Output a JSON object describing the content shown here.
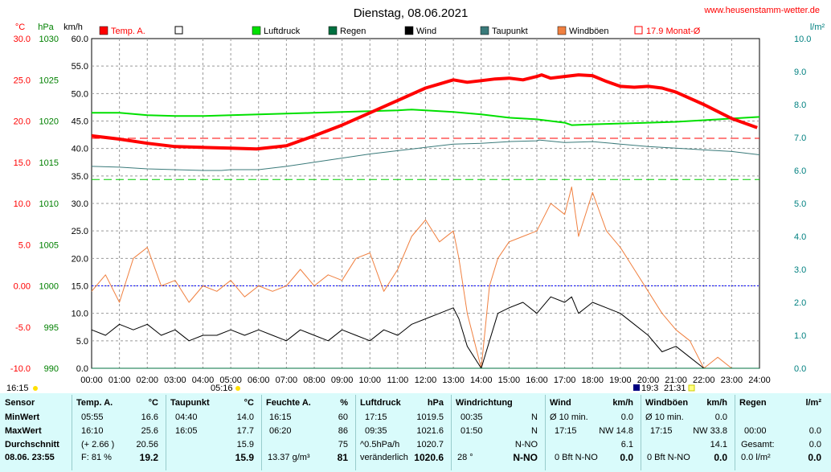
{
  "chart_data": {
    "type": "line",
    "title": "Dienstag, 08.06.2021",
    "source": "www.heusenstamm-wetter.de",
    "axes": {
      "temp": {
        "unit": "°C",
        "ticks": [
          "30.0",
          "25.0",
          "20.0",
          "15.0",
          "10.0",
          "5.0",
          "0.00",
          "-5.0",
          "-10.0"
        ],
        "color": "#ff0000",
        "range": [
          -10,
          30
        ]
      },
      "pressure": {
        "unit": "hPa",
        "ticks": [
          "1030",
          "1025",
          "1020",
          "1015",
          "1010",
          "1005",
          "1000",
          "995",
          "990"
        ],
        "color": "#008000",
        "range": [
          990,
          1030
        ]
      },
      "wind": {
        "unit": "km/h",
        "ticks": [
          "60.0",
          "55.0",
          "50.0",
          "45.0",
          "40.0",
          "35.0",
          "30.0",
          "25.0",
          "20.0",
          "15.0",
          "10.0",
          "5.0",
          "0.0"
        ],
        "color": "#000000",
        "range": [
          0,
          60
        ]
      },
      "rain": {
        "unit": "l/m²",
        "ticks": [
          "10.0",
          "9.0",
          "8.0",
          "7.0",
          "6.0",
          "5.0",
          "4.0",
          "3.0",
          "2.0",
          "1.0",
          "0.0"
        ],
        "color": "#008080",
        "range": [
          0,
          10
        ]
      }
    },
    "x_ticks": [
      "00:00",
      "01:00",
      "02:00",
      "03:00",
      "04:00",
      "05:00",
      "06:00",
      "07:00",
      "08:00",
      "09:00",
      "10:00",
      "11:00",
      "12:00",
      "13:00",
      "14:00",
      "15:00",
      "16:00",
      "17:00",
      "18:00",
      "19:00",
      "20:00",
      "21:00",
      "22:00",
      "23:00",
      "24:00"
    ],
    "legend": [
      {
        "name": "Temp. A.",
        "color": "#ff0000",
        "style": "filled"
      },
      {
        "name": "",
        "color": "#ffffff",
        "style": "empty"
      },
      {
        "name": "Luftdruck",
        "color": "#00e000",
        "style": "filled"
      },
      {
        "name": "Regen",
        "color": "#007040",
        "style": "filled"
      },
      {
        "name": "Wind",
        "color": "#000000",
        "style": "filled"
      },
      {
        "name": "Taupunkt",
        "color": "#3a7a7a",
        "style": "filled"
      },
      {
        "name": "Windböen",
        "color": "#f08040",
        "style": "filled"
      },
      {
        "name": "17.9 Monat-Ø",
        "color": "#ff0000",
        "style": "outline"
      }
    ],
    "month_avg_temp": 17.9,
    "series": [
      {
        "name": "Temp. A.",
        "axis": "temp",
        "color": "#ff0000",
        "x": [
          0,
          1,
          2,
          3,
          4,
          5,
          5.93,
          7,
          8,
          9,
          10,
          11,
          12,
          12.5,
          13,
          13.5,
          14,
          14.5,
          15,
          15.5,
          16,
          16.17,
          16.5,
          17,
          17.5,
          18,
          18.5,
          19,
          19.5,
          20,
          20.5,
          21,
          22,
          23,
          23.92
        ],
        "y": [
          18.2,
          17.8,
          17.3,
          16.9,
          16.8,
          16.7,
          16.6,
          17.0,
          18.2,
          19.5,
          21.0,
          22.5,
          24.0,
          24.5,
          25.0,
          24.7,
          24.9,
          25.1,
          25.2,
          25.0,
          25.4,
          25.6,
          25.2,
          25.4,
          25.6,
          25.5,
          24.8,
          24.2,
          24.1,
          24.2,
          24.0,
          23.5,
          22.0,
          20.3,
          19.2
        ]
      },
      {
        "name": "Luftdruck",
        "axis": "pressure",
        "color": "#00e000",
        "x": [
          0,
          1,
          2,
          3,
          4,
          5,
          6,
          7,
          8,
          9,
          10,
          11,
          11.5,
          12,
          13,
          14,
          15,
          16,
          17,
          17.25,
          18,
          19,
          20,
          21,
          22,
          23,
          24
        ],
        "y": [
          1021.0,
          1021.0,
          1020.7,
          1020.6,
          1020.6,
          1020.7,
          1020.8,
          1020.9,
          1021.0,
          1021.1,
          1021.2,
          1021.3,
          1021.4,
          1021.3,
          1021.1,
          1020.8,
          1020.4,
          1020.2,
          1019.8,
          1019.5,
          1019.6,
          1019.7,
          1019.8,
          1019.9,
          1020.1,
          1020.3,
          1020.5
        ]
      },
      {
        "name": "Taupunkt",
        "axis": "temp",
        "color": "#3a7a7a",
        "x": [
          0,
          1,
          2,
          3,
          4,
          4.67,
          5,
          6,
          7,
          8,
          9,
          10,
          11,
          12,
          13,
          14,
          15,
          16,
          16.08,
          17,
          18,
          19,
          20,
          21,
          22,
          23,
          24
        ],
        "y": [
          14.5,
          14.4,
          14.2,
          14.1,
          14.0,
          14.0,
          14.1,
          14.1,
          14.5,
          15.0,
          15.5,
          16.0,
          16.4,
          16.8,
          17.2,
          17.3,
          17.5,
          17.6,
          17.7,
          17.4,
          17.5,
          17.2,
          16.9,
          16.7,
          16.5,
          16.3,
          15.9
        ]
      },
      {
        "name": "Wind",
        "axis": "wind",
        "color": "#000000",
        "x": [
          0,
          0.5,
          1,
          1.5,
          2,
          2.5,
          3,
          3.5,
          4,
          4.5,
          5,
          5.5,
          6,
          6.5,
          7,
          7.5,
          8,
          8.5,
          9,
          9.5,
          10,
          10.5,
          11,
          11.5,
          12,
          12.5,
          13,
          13.2,
          13.5,
          14,
          14.3,
          14.6,
          15,
          15.5,
          16,
          16.5,
          17,
          17.25,
          17.5,
          18,
          18.5,
          19,
          19.5,
          20,
          20.5,
          21,
          21.5,
          22
        ],
        "y": [
          7,
          6,
          8,
          7,
          8,
          6,
          7,
          5,
          6,
          6,
          7,
          6,
          7,
          6,
          5,
          7,
          6,
          5,
          7,
          6,
          5,
          7,
          6,
          8,
          9,
          10,
          11,
          9,
          4,
          0,
          5,
          10,
          11,
          12,
          10,
          13,
          12,
          13,
          10,
          12,
          11,
          10,
          8,
          6,
          3,
          4,
          2,
          0
        ]
      },
      {
        "name": "Windböen",
        "axis": "wind",
        "color": "#f08040",
        "x": [
          0,
          0.5,
          1,
          1.5,
          2,
          2.5,
          3,
          3.5,
          4,
          4.5,
          5,
          5.5,
          6,
          6.5,
          7,
          7.5,
          8,
          8.5,
          9,
          9.5,
          10,
          10.5,
          11,
          11.5,
          12,
          12.5,
          13,
          13.2,
          13.5,
          14,
          14.3,
          14.6,
          15,
          15.5,
          16,
          16.5,
          17,
          17.25,
          17.5,
          18,
          18.5,
          19,
          19.5,
          20,
          20.5,
          21,
          21.5,
          22,
          22.5,
          23
        ],
        "y": [
          14,
          17,
          12,
          20,
          22,
          15,
          16,
          12,
          15,
          14,
          16,
          13,
          15,
          14,
          15,
          18,
          15,
          17,
          16,
          20,
          21,
          14,
          18,
          24,
          27,
          23,
          25,
          20,
          10,
          0,
          15,
          20,
          23,
          24,
          25,
          30,
          28,
          33,
          24,
          32,
          25,
          22,
          18,
          14,
          10,
          7,
          5,
          0,
          2,
          0
        ]
      },
      {
        "name": "Regen",
        "axis": "rain",
        "color": "#007040",
        "x": [
          0,
          24
        ],
        "y": [
          0,
          0
        ]
      }
    ],
    "ref_lines": [
      {
        "axis": "temp",
        "value": 17.9,
        "color": "#ff0000",
        "style": "dashed"
      },
      {
        "axis": "temp",
        "value": 0,
        "color": "#0000ff",
        "style": "dotted"
      },
      {
        "axis": "temp",
        "value": 12.9,
        "color": "#00cc00",
        "style": "dashed"
      }
    ],
    "markers": {
      "sunrise": "05:16",
      "sunset": "21:31",
      "moon": "19:3",
      "left_time": "16:15"
    }
  },
  "table": {
    "row_labels": {
      "sensor": "Sensor",
      "min": "MinWert",
      "max": "MaxWert",
      "avg": "Durchschnitt",
      "date": "08.06. 23:55"
    },
    "temp": {
      "h1": "Temp. A.",
      "h2": "°C",
      "min_t": "05:55",
      "min_v": "16.6",
      "max_t": "16:10",
      "max_v": "25.6",
      "avg_t": "(+ 2.66 )",
      "avg_v": "20.56",
      "cur_t": "F: 81 %",
      "cur_v": "19.2"
    },
    "dew": {
      "h1": "Taupunkt",
      "h2": "°C",
      "min_t": "04:40",
      "min_v": "14.0",
      "max_t": "16:05",
      "max_v": "17.7",
      "avg_v": "15.9",
      "cur_v": "15.9"
    },
    "hum": {
      "h1": "Feuchte A.",
      "h2": "%",
      "min_t": "16:15",
      "min_v": "60",
      "max_t": "06:20",
      "max_v": "86",
      "avg_v": "75",
      "cur_t": "13.37 g/m³",
      "cur_v": "81"
    },
    "press": {
      "h1": "Luftdruck",
      "h2": "hPa",
      "min_t": "17:15",
      "min_v": "1019.5",
      "max_t": "09:35",
      "max_v": "1021.6",
      "avg_t": "^0.5hPa/h",
      "avg_v": "1020.7",
      "cur_t": "veränderlich",
      "cur_v": "1020.6"
    },
    "wdir": {
      "h1": "Windrichtung",
      "min_t": "00:35",
      "min_v": "N",
      "max_t": "01:50",
      "max_v": "N",
      "avg_v": "N-NO",
      "cur_t": "28 °",
      "cur_v": "N-NO"
    },
    "wind": {
      "h1": "Wind",
      "h2": "km/h",
      "min_t": "Ø 10 min.",
      "min_v": "0.0",
      "max_t": "17:15",
      "max_m": "NW 14.8",
      "avg_v": "6.1",
      "cur_t": "0 Bft N-NO",
      "cur_v": "0.0"
    },
    "gust": {
      "h1": "Windböen",
      "h2": "km/h",
      "min_t": "Ø 10 min.",
      "min_v": "0.0",
      "max_t": "17:15",
      "max_m": "NW 33.8",
      "avg_v": "14.1",
      "cur_t": "0 Bft N-NO",
      "cur_v": "0.0"
    },
    "rain": {
      "h1": "Regen",
      "h2": "l/m²",
      "min_t": "00:00",
      "min_v": "0.0",
      "max_t": "Gesamt:",
      "max_v": "0.0",
      "cur_t": "0.0 l/m²",
      "cur_v": "0.0"
    }
  }
}
